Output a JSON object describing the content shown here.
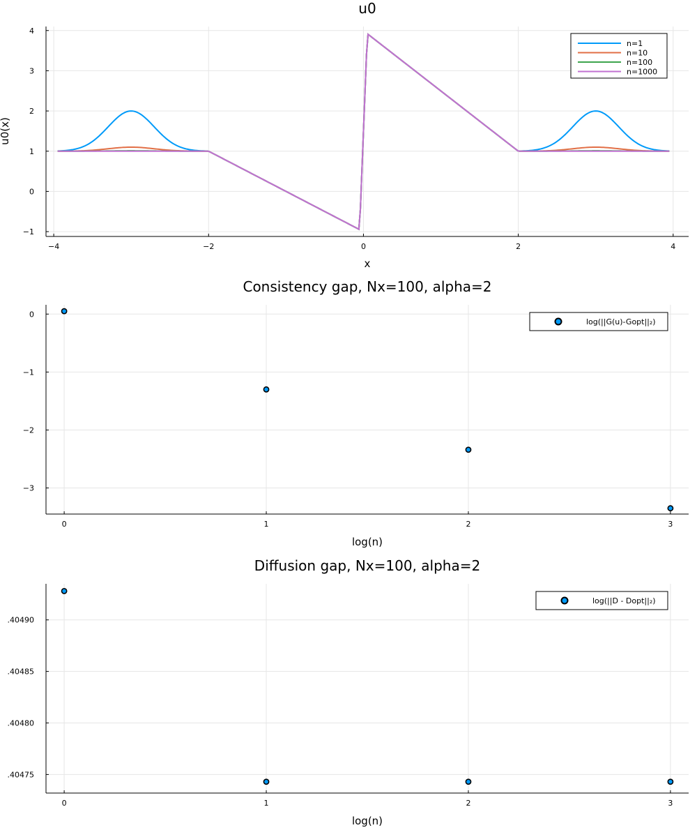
{
  "chart_data": [
    {
      "type": "line",
      "title": "u0",
      "xlabel": "x",
      "ylabel": "u0(x)",
      "xlim": [
        -4.1,
        4.2
      ],
      "ylim": [
        -1.12,
        4.1
      ],
      "xticks": [
        -4,
        -2,
        0,
        2,
        4
      ],
      "yticks": [
        -1,
        0,
        1,
        2,
        3,
        4
      ],
      "xtick_labels": [
        "−4",
        "−2",
        "0",
        "2",
        "4"
      ],
      "ytick_labels": [
        "−1",
        "0",
        "1",
        "2",
        "3",
        "4"
      ],
      "grid": true,
      "legend_position": "top-right",
      "series": [
        {
          "name": "n=1",
          "color": "#009af9",
          "bump_height": 1.0
        },
        {
          "name": "n=10",
          "color": "#e26f46",
          "bump_height": 0.1
        },
        {
          "name": "n=100",
          "color": "#3da44d",
          "bump_height": 0.01
        },
        {
          "name": "n=1000",
          "color": "#c271d2",
          "bump_height": 0.001
        }
      ]
    },
    {
      "type": "scatter",
      "title": "Consistency gap, Nx=100, alpha=2",
      "xlabel": "log(n)",
      "ylabel": "",
      "xlim": [
        -0.09,
        3.09
      ],
      "ylim": [
        -3.45,
        0.16
      ],
      "xticks": [
        0,
        1,
        2,
        3
      ],
      "yticks": [
        0,
        -1,
        -2,
        -3
      ],
      "xtick_labels": [
        "0",
        "1",
        "2",
        "3"
      ],
      "ytick_labels": [
        "0",
        "−1",
        "−2",
        "−3"
      ],
      "grid": true,
      "legend_position": "top-right",
      "series": [
        {
          "name": "log(||G(u)-Gopt||₂)",
          "color": "#009af9",
          "x": [
            0,
            1,
            2,
            3
          ],
          "y": [
            0.05,
            -1.3,
            -2.34,
            -3.35
          ]
        }
      ]
    },
    {
      "type": "scatter",
      "title": "Diffusion gap, Nx=100, alpha=2",
      "xlabel": "log(n)",
      "ylabel": "",
      "xlim": [
        -0.09,
        3.09
      ],
      "ylim": [
        0.404732,
        0.404935
      ],
      "xticks": [
        0,
        1,
        2,
        3
      ],
      "yticks": [
        0.40475,
        0.4048,
        0.40485,
        0.4049
      ],
      "xtick_labels": [
        "0",
        "1",
        "2",
        "3"
      ],
      "ytick_labels": [
        ".40475",
        ".40480",
        ".40485",
        ".40490"
      ],
      "grid": true,
      "legend_position": "top-right",
      "series": [
        {
          "name": "log(||D - Dopt||₂)",
          "color": "#009af9",
          "x": [
            0,
            1,
            2,
            3
          ],
          "y": [
            0.404928,
            0.404743,
            0.404743,
            0.404743
          ]
        }
      ]
    }
  ]
}
